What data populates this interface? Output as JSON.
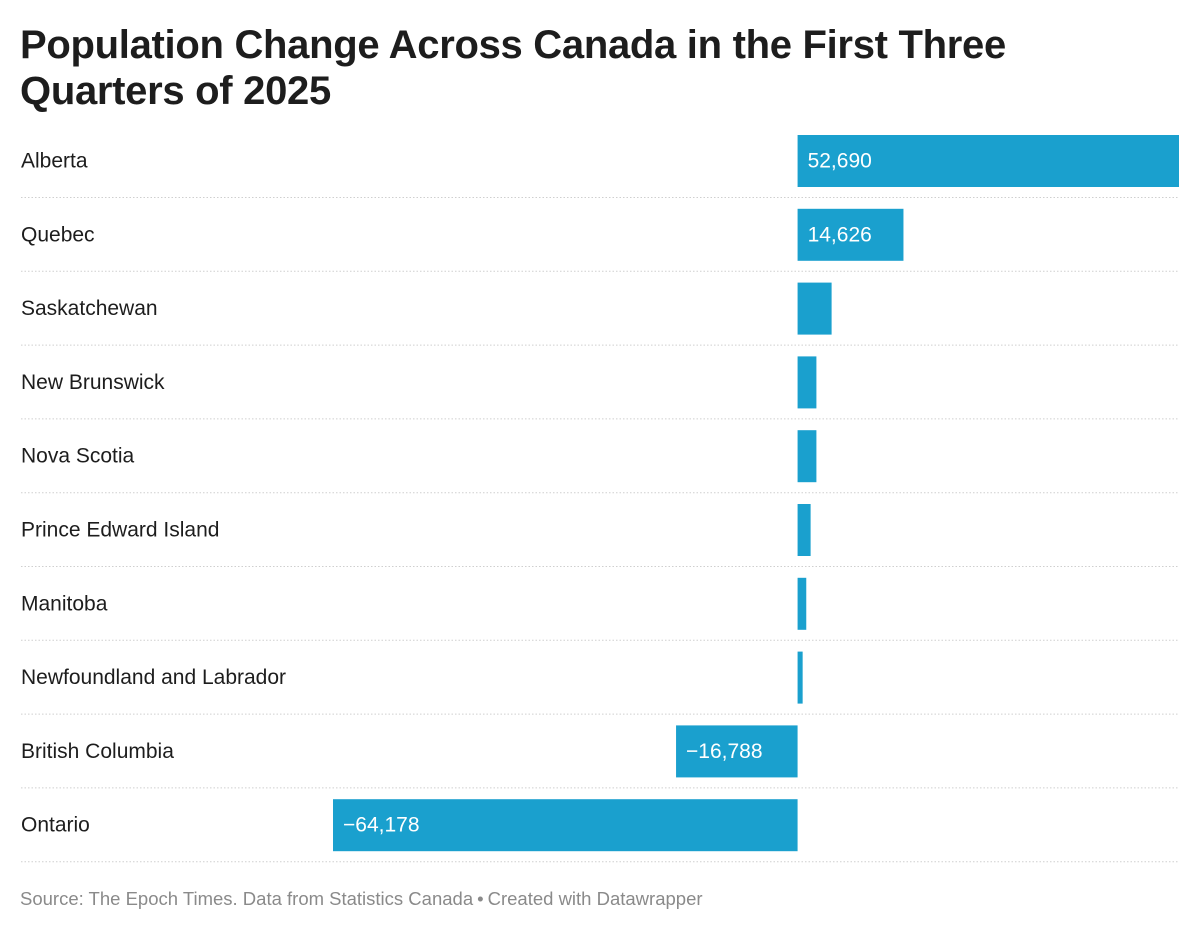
{
  "chart_data": {
    "type": "bar",
    "orientation": "horizontal",
    "title": "Population Change Across Canada in the First Three Quarters of 2025",
    "categories": [
      "Alberta",
      "Quebec",
      "Saskatchewan",
      "New Brunswick",
      "Nova Scotia",
      "Prince Edward Island",
      "Manitoba",
      "Newfoundland and Labrador",
      "British Columbia",
      "Ontario"
    ],
    "values": [
      52690,
      14626,
      4700,
      2600,
      2600,
      1800,
      1200,
      700,
      -16788,
      -64178
    ],
    "data_labels": [
      "52,690",
      "14,626",
      "",
      "",
      "",
      "",
      "",
      "",
      "−16,788",
      "−64,178"
    ],
    "xlim": [
      -64178,
      52690
    ],
    "bar_color": "#1aa0ce",
    "grid": false,
    "legend": "none"
  },
  "footer": {
    "source": "Source: The Epoch Times. Data from Statistics Canada",
    "separator": "•",
    "credit": "Created with Datawrapper"
  }
}
